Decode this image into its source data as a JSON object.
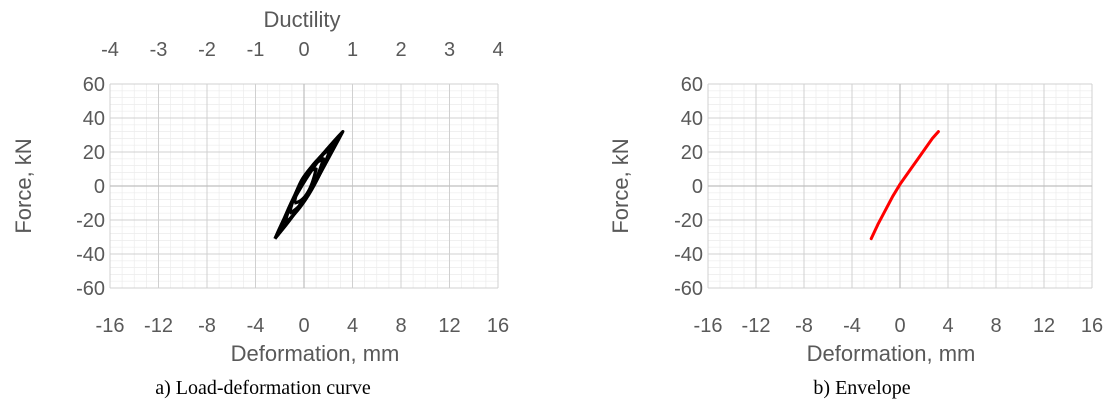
{
  "chart_data": [
    {
      "type": "line",
      "caption": "a) Load-deformation curve",
      "xlabel": "Deformation, mm",
      "ylabel": "Force, kN",
      "xlim": [
        -16,
        16
      ],
      "ylim": [
        -60,
        60
      ],
      "x_ticks": [
        "-16",
        "-12",
        "-8",
        "-4",
        "0",
        "4",
        "8",
        "12",
        "16"
      ],
      "y_ticks": [
        "60",
        "40",
        "20",
        "0",
        "-20",
        "-40",
        "-60"
      ],
      "secondary_x_axis": {
        "label": "Ductility",
        "xlim": [
          -4,
          4
        ],
        "ticks": [
          "-4",
          "-3",
          "-2",
          "-1",
          "0",
          "1",
          "2",
          "3",
          "4"
        ]
      },
      "grid": true,
      "series": [
        {
          "color": "#000000",
          "loops": [
            {
              "peak": [
                3.2,
                32
              ],
              "trough": [
                -2.4,
                -31
              ],
              "mid_up": [
                0.2,
                -2.5
              ],
              "mid_down": [
                0.0,
                2.5
              ]
            },
            {
              "peak": [
                3.0,
                30
              ],
              "trough": [
                -2.2,
                -29
              ],
              "mid_up": [
                0.3,
                -3.0
              ],
              "mid_down": [
                -0.1,
                3.0
              ]
            },
            {
              "peak": [
                2.6,
                26
              ],
              "trough": [
                -2.0,
                -26
              ],
              "mid_up": [
                0.4,
                -3.5
              ],
              "mid_down": [
                -0.2,
                3.5
              ]
            },
            {
              "peak": [
                2.2,
                22
              ],
              "trough": [
                -1.6,
                -22
              ],
              "mid_up": [
                0.5,
                -4.0
              ],
              "mid_down": [
                -0.3,
                4.0
              ]
            },
            {
              "peak": [
                1.6,
                16
              ],
              "trough": [
                -1.2,
                -16
              ],
              "mid_up": [
                0.5,
                -4.0
              ],
              "mid_down": [
                -0.3,
                4.0
              ]
            },
            {
              "peak": [
                1.0,
                10
              ],
              "trough": [
                -0.8,
                -10
              ],
              "mid_up": [
                0.4,
                -3.0
              ],
              "mid_down": [
                -0.3,
                3.0
              ]
            }
          ]
        }
      ]
    },
    {
      "type": "line",
      "caption": "b) Envelope",
      "xlabel": "Deformation, mm",
      "ylabel": "Force, kN",
      "xlim": [
        -16,
        16
      ],
      "ylim": [
        -60,
        60
      ],
      "x_ticks": [
        "-16",
        "-12",
        "-8",
        "-4",
        "0",
        "4",
        "8",
        "12",
        "16"
      ],
      "y_ticks": [
        "60",
        "40",
        "20",
        "0",
        "-20",
        "-40",
        "-60"
      ],
      "grid": true,
      "series": [
        {
          "color": "#ff0000",
          "x": [
            -2.4,
            -1.8,
            -1.2,
            -0.6,
            0.0,
            0.5,
            1.0,
            1.6,
            2.2,
            2.7,
            3.2
          ],
          "y": [
            -31,
            -22,
            -14,
            -6,
            1,
            6,
            11,
            17,
            23,
            28,
            32
          ]
        }
      ]
    }
  ]
}
